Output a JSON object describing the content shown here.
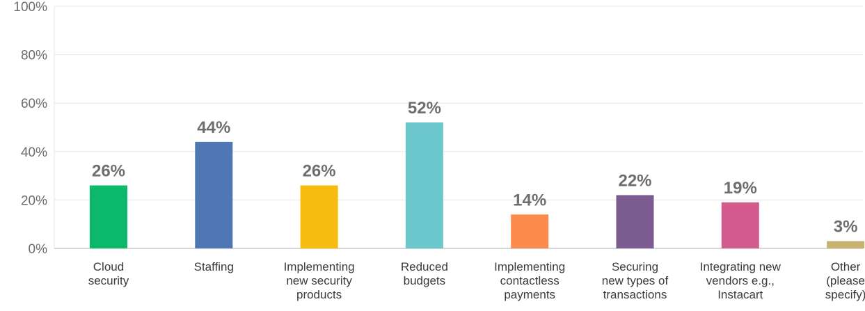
{
  "chart_data": {
    "type": "bar",
    "title": "",
    "xlabel": "",
    "ylabel": "",
    "ylim": [
      0,
      100
    ],
    "y_ticks": [
      "0%",
      "20%",
      "40%",
      "60%",
      "80%",
      "100%"
    ],
    "y_tick_values": [
      0,
      20,
      40,
      60,
      80,
      100
    ],
    "grid": true,
    "legend": "none",
    "categories": [
      [
        "Cloud",
        "security"
      ],
      [
        "Staffing"
      ],
      [
        "Implementing",
        "new security",
        "products"
      ],
      [
        "Reduced",
        "budgets"
      ],
      [
        "Implementing",
        "contactless",
        "payments"
      ],
      [
        "Securing",
        "new types of",
        "transactions"
      ],
      [
        "Integrating new",
        "vendors e.g.,",
        "Instacart"
      ],
      [
        "Other",
        "(please",
        "specify)"
      ]
    ],
    "values": [
      26,
      44,
      26,
      52,
      14,
      22,
      19,
      3
    ],
    "value_labels": [
      "26%",
      "44%",
      "26%",
      "52%",
      "14%",
      "22%",
      "19%",
      "3%"
    ],
    "colors": [
      "#0cb96b",
      "#4f77b4",
      "#f6bb0e",
      "#6cc7cd",
      "#fb8a4c",
      "#7c5b90",
      "#d25a8d",
      "#c9b26f"
    ]
  }
}
